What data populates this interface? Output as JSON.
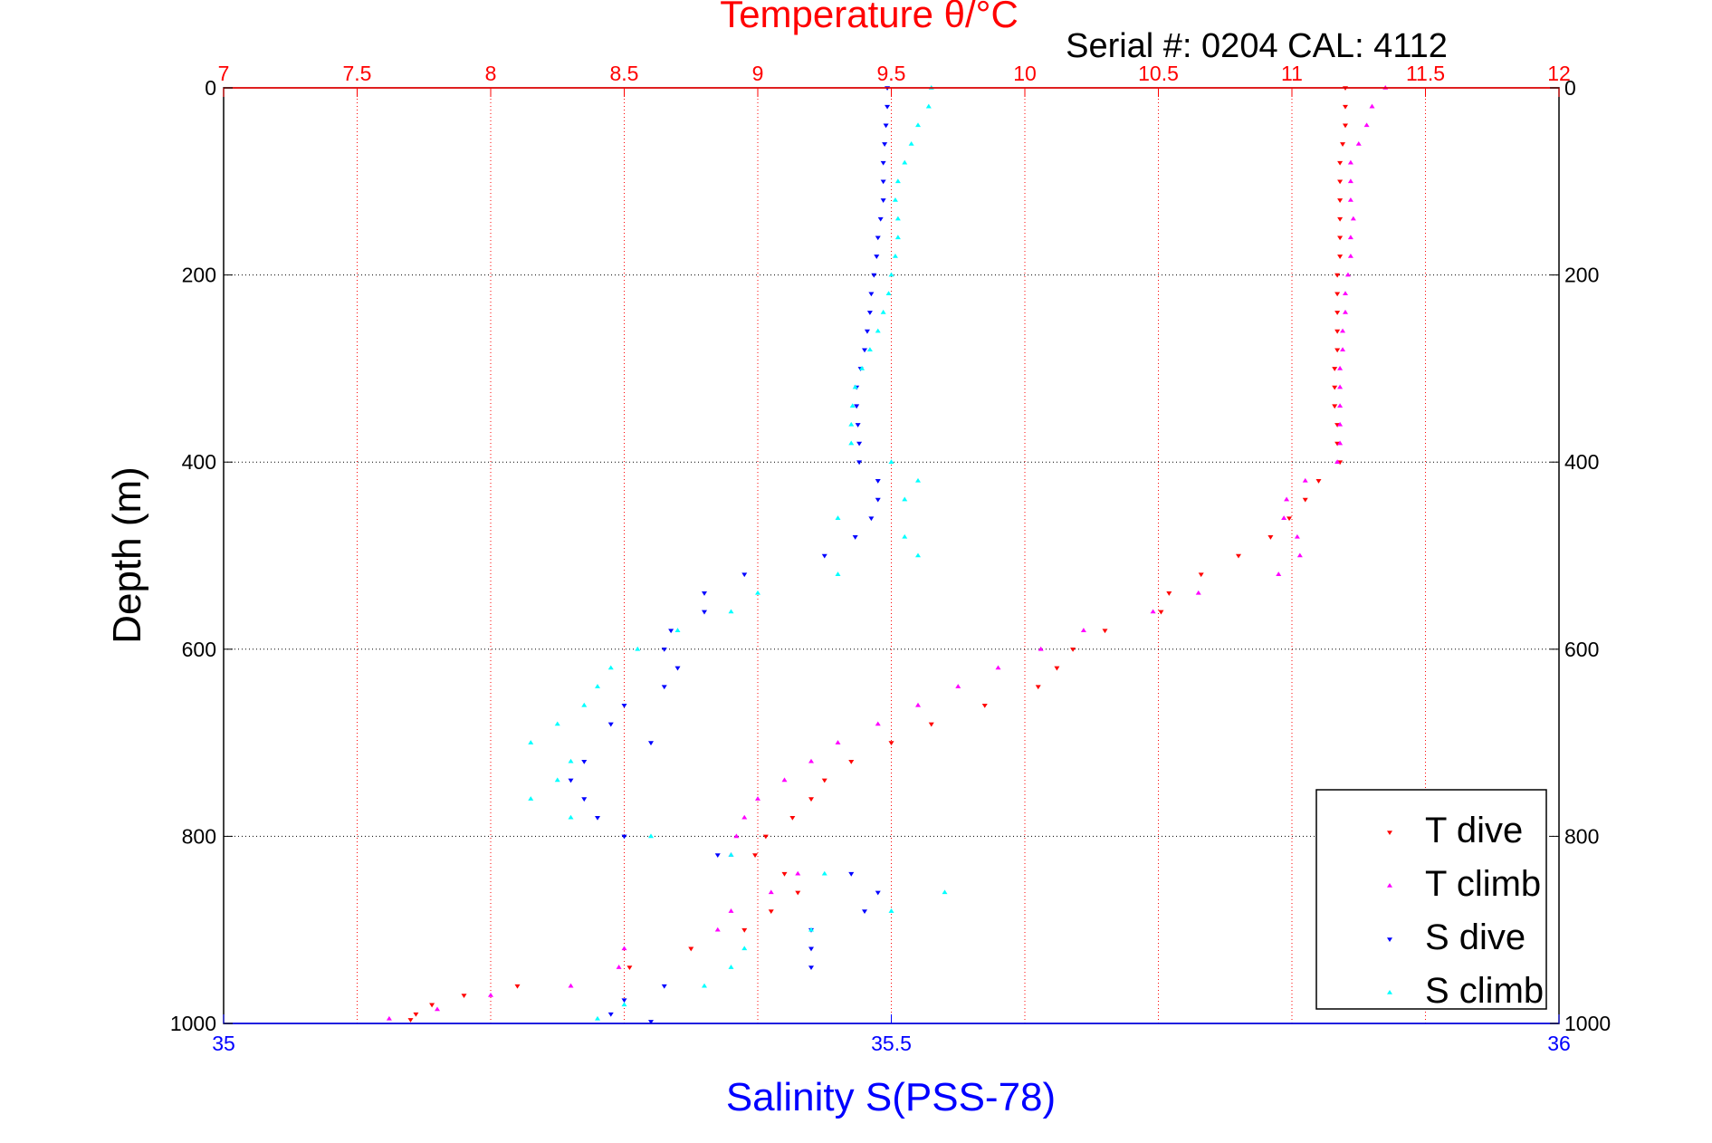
{
  "chart_data": {
    "type": "scatter",
    "title": "Temperature θ/°C",
    "subtitle": "Serial #: 0204  CAL: 4112",
    "ylabel": "Depth (m)",
    "xlabel_bottom": "Salinity S(PSS-78)",
    "y_axis": {
      "range": [
        0,
        1000
      ],
      "reversed": true,
      "ticks": [
        "0",
        "200",
        "400",
        "600",
        "800",
        "1000"
      ]
    },
    "x_top": {
      "label": "Temperature θ/°C",
      "range": [
        7,
        12
      ],
      "ticks": [
        "7",
        "7.5",
        "8",
        "8.5",
        "9",
        "9.5",
        "10",
        "10.5",
        "11",
        "11.5",
        "12"
      ],
      "grid": true
    },
    "x_bottom": {
      "label": "Salinity S(PSS-78)",
      "range": [
        35,
        36
      ],
      "ticks": [
        "35",
        "35.5",
        "36"
      ]
    },
    "legend": {
      "placement": "bottom-right"
    },
    "colors": {
      "temperature_axis": "#ff0000",
      "salinity_axis": "#0000ff",
      "t_dive": "#ff0000",
      "t_climb": "#ff00ff",
      "s_dive": "#0000ff",
      "s_climb": "#00ffff",
      "grid": "#000000"
    },
    "series": [
      {
        "name": "T dive",
        "axis": "temperature",
        "marker": "triangle-down",
        "points": [
          [
            11.2,
            0
          ],
          [
            11.2,
            20
          ],
          [
            11.2,
            40
          ],
          [
            11.19,
            60
          ],
          [
            11.18,
            80
          ],
          [
            11.18,
            100
          ],
          [
            11.18,
            120
          ],
          [
            11.18,
            140
          ],
          [
            11.18,
            160
          ],
          [
            11.18,
            180
          ],
          [
            11.17,
            200
          ],
          [
            11.17,
            220
          ],
          [
            11.17,
            240
          ],
          [
            11.17,
            260
          ],
          [
            11.17,
            280
          ],
          [
            11.16,
            300
          ],
          [
            11.16,
            320
          ],
          [
            11.16,
            340
          ],
          [
            11.17,
            360
          ],
          [
            11.17,
            380
          ],
          [
            11.18,
            400
          ],
          [
            11.1,
            420
          ],
          [
            11.05,
            440
          ],
          [
            10.99,
            460
          ],
          [
            10.92,
            480
          ],
          [
            10.8,
            500
          ],
          [
            10.66,
            520
          ],
          [
            10.54,
            540
          ],
          [
            10.51,
            560
          ],
          [
            10.3,
            580
          ],
          [
            10.18,
            600
          ],
          [
            10.12,
            620
          ],
          [
            10.05,
            640
          ],
          [
            9.85,
            660
          ],
          [
            9.65,
            680
          ],
          [
            9.5,
            700
          ],
          [
            9.35,
            720
          ],
          [
            9.25,
            740
          ],
          [
            9.2,
            760
          ],
          [
            9.13,
            780
          ],
          [
            9.03,
            800
          ],
          [
            8.99,
            820
          ],
          [
            9.1,
            840
          ],
          [
            9.15,
            860
          ],
          [
            9.05,
            880
          ],
          [
            8.95,
            900
          ],
          [
            8.75,
            920
          ],
          [
            8.52,
            940
          ],
          [
            8.1,
            960
          ],
          [
            7.9,
            970
          ],
          [
            7.78,
            980
          ],
          [
            7.72,
            990
          ],
          [
            7.7,
            996
          ]
        ]
      },
      {
        "name": "T climb",
        "axis": "temperature",
        "marker": "triangle-up",
        "points": [
          [
            11.35,
            0
          ],
          [
            11.3,
            20
          ],
          [
            11.28,
            40
          ],
          [
            11.25,
            60
          ],
          [
            11.22,
            80
          ],
          [
            11.22,
            100
          ],
          [
            11.22,
            120
          ],
          [
            11.23,
            140
          ],
          [
            11.22,
            160
          ],
          [
            11.22,
            180
          ],
          [
            11.21,
            200
          ],
          [
            11.2,
            220
          ],
          [
            11.2,
            240
          ],
          [
            11.19,
            260
          ],
          [
            11.19,
            280
          ],
          [
            11.18,
            300
          ],
          [
            11.18,
            320
          ],
          [
            11.18,
            340
          ],
          [
            11.18,
            360
          ],
          [
            11.18,
            380
          ],
          [
            11.17,
            400
          ],
          [
            11.05,
            420
          ],
          [
            10.98,
            440
          ],
          [
            10.97,
            460
          ],
          [
            11.02,
            480
          ],
          [
            11.03,
            500
          ],
          [
            10.95,
            520
          ],
          [
            10.65,
            540
          ],
          [
            10.48,
            560
          ],
          [
            10.22,
            580
          ],
          [
            10.06,
            600
          ],
          [
            9.9,
            620
          ],
          [
            9.75,
            640
          ],
          [
            9.6,
            660
          ],
          [
            9.45,
            680
          ],
          [
            9.3,
            700
          ],
          [
            9.2,
            720
          ],
          [
            9.1,
            740
          ],
          [
            9.0,
            760
          ],
          [
            8.95,
            780
          ],
          [
            8.92,
            800
          ],
          [
            8.9,
            820
          ],
          [
            9.15,
            840
          ],
          [
            9.05,
            860
          ],
          [
            8.9,
            880
          ],
          [
            8.85,
            900
          ],
          [
            8.5,
            920
          ],
          [
            8.48,
            940
          ],
          [
            8.3,
            960
          ],
          [
            8.0,
            970
          ],
          [
            7.8,
            985
          ],
          [
            7.62,
            995
          ]
        ]
      },
      {
        "name": "S dive",
        "axis": "salinity",
        "marker": "triangle-down",
        "points": [
          [
            35.497,
            0
          ],
          [
            35.497,
            20
          ],
          [
            35.496,
            40
          ],
          [
            35.495,
            60
          ],
          [
            35.494,
            80
          ],
          [
            35.494,
            100
          ],
          [
            35.494,
            120
          ],
          [
            35.492,
            140
          ],
          [
            35.49,
            160
          ],
          [
            35.489,
            180
          ],
          [
            35.487,
            200
          ],
          [
            35.485,
            220
          ],
          [
            35.484,
            240
          ],
          [
            35.482,
            260
          ],
          [
            35.48,
            280
          ],
          [
            35.477,
            300
          ],
          [
            35.474,
            320
          ],
          [
            35.474,
            340
          ],
          [
            35.475,
            360
          ],
          [
            35.476,
            380
          ],
          [
            35.476,
            400
          ],
          [
            35.49,
            420
          ],
          [
            35.49,
            440
          ],
          [
            35.485,
            460
          ],
          [
            35.473,
            480
          ],
          [
            35.45,
            500
          ],
          [
            35.39,
            520
          ],
          [
            35.36,
            540
          ],
          [
            35.36,
            560
          ],
          [
            35.335,
            580
          ],
          [
            35.33,
            600
          ],
          [
            35.34,
            620
          ],
          [
            35.33,
            640
          ],
          [
            35.3,
            660
          ],
          [
            35.29,
            680
          ],
          [
            35.32,
            700
          ],
          [
            35.27,
            720
          ],
          [
            35.26,
            740
          ],
          [
            35.27,
            760
          ],
          [
            35.28,
            780
          ],
          [
            35.3,
            800
          ],
          [
            35.37,
            820
          ],
          [
            35.47,
            840
          ],
          [
            35.49,
            860
          ],
          [
            35.48,
            880
          ],
          [
            35.44,
            900
          ],
          [
            35.44,
            920
          ],
          [
            35.44,
            940
          ],
          [
            35.33,
            960
          ],
          [
            35.3,
            975
          ],
          [
            35.29,
            990
          ],
          [
            35.32,
            998
          ]
        ]
      },
      {
        "name": "S climb",
        "axis": "salinity",
        "marker": "triangle-up",
        "points": [
          [
            35.53,
            0
          ],
          [
            35.528,
            20
          ],
          [
            35.52,
            40
          ],
          [
            35.515,
            60
          ],
          [
            35.51,
            80
          ],
          [
            35.505,
            100
          ],
          [
            35.503,
            120
          ],
          [
            35.505,
            140
          ],
          [
            35.505,
            160
          ],
          [
            35.503,
            180
          ],
          [
            35.5,
            200
          ],
          [
            35.498,
            220
          ],
          [
            35.494,
            240
          ],
          [
            35.49,
            260
          ],
          [
            35.484,
            280
          ],
          [
            35.478,
            300
          ],
          [
            35.473,
            320
          ],
          [
            35.471,
            340
          ],
          [
            35.47,
            360
          ],
          [
            35.47,
            380
          ],
          [
            35.5,
            400
          ],
          [
            35.52,
            420
          ],
          [
            35.51,
            440
          ],
          [
            35.46,
            460
          ],
          [
            35.51,
            480
          ],
          [
            35.52,
            500
          ],
          [
            35.46,
            520
          ],
          [
            35.4,
            540
          ],
          [
            35.38,
            560
          ],
          [
            35.34,
            580
          ],
          [
            35.31,
            600
          ],
          [
            35.29,
            620
          ],
          [
            35.28,
            640
          ],
          [
            35.27,
            660
          ],
          [
            35.25,
            680
          ],
          [
            35.23,
            700
          ],
          [
            35.26,
            720
          ],
          [
            35.25,
            740
          ],
          [
            35.23,
            760
          ],
          [
            35.26,
            780
          ],
          [
            35.32,
            800
          ],
          [
            35.38,
            820
          ],
          [
            35.45,
            840
          ],
          [
            35.54,
            860
          ],
          [
            35.5,
            880
          ],
          [
            35.44,
            900
          ],
          [
            35.39,
            920
          ],
          [
            35.38,
            940
          ],
          [
            35.36,
            960
          ],
          [
            35.3,
            980
          ],
          [
            35.28,
            995
          ]
        ]
      }
    ]
  }
}
